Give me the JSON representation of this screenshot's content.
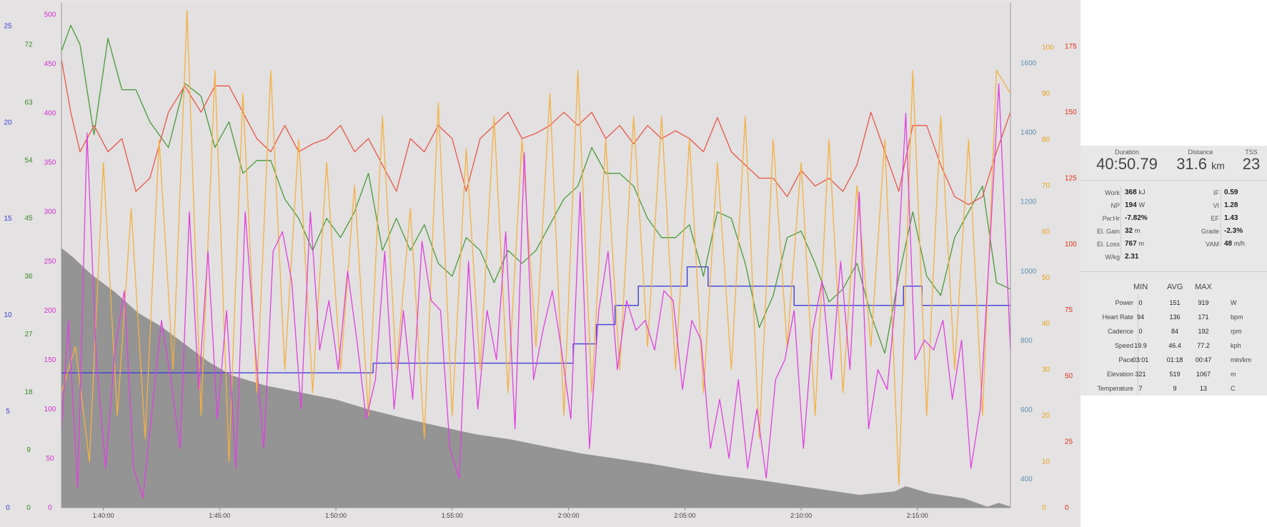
{
  "colors": {
    "background": "#e4e2e2",
    "elevation": "#8f8f8f",
    "power": "#e040e0",
    "heart_rate": "#e8564a",
    "cadence": "#f5b040",
    "speed": "#4a9a3a",
    "gear": "#3f3fd8",
    "elevation_axis": "#5f8fb0"
  },
  "chart_data": {
    "type": "line",
    "x_ticks": [
      "1:40:00",
      "1:45:00",
      "1:50:00",
      "1:55:00",
      "2:00:00",
      "2:05:00",
      "2:10:00",
      "2:15:00"
    ],
    "xlim_minutes": [
      98.2,
      139.0
    ],
    "axes": [
      {
        "id": "blue",
        "side": "left",
        "color": "#3f3fd8",
        "ticks": [
          "0",
          "5",
          "10",
          "15",
          "20",
          "25"
        ],
        "range": [
          0,
          26.2
        ]
      },
      {
        "id": "green",
        "side": "left",
        "color": "#3a8a2a",
        "ticks": [
          "0",
          "9",
          "18",
          "27",
          "36",
          "45",
          "54",
          "63",
          "72"
        ],
        "range": [
          0,
          78.5
        ]
      },
      {
        "id": "magenta",
        "side": "left",
        "color": "#d030d0",
        "ticks": [
          "0",
          "50",
          "100",
          "150",
          "200",
          "250",
          "300",
          "350",
          "400",
          "450",
          "500"
        ],
        "range": [
          0,
          512
        ]
      },
      {
        "id": "elev",
        "side": "right",
        "color": "#5f8fb0",
        "ticks": [
          "400",
          "600",
          "800",
          "1000",
          "1200",
          "1400",
          "1600"
        ],
        "range": [
          318,
          1774
        ]
      },
      {
        "id": "orange",
        "side": "right",
        "color": "#e8a020",
        "ticks": [
          "0",
          "10",
          "20",
          "30",
          "40",
          "50",
          "60",
          "70",
          "80",
          "90",
          "100"
        ],
        "range": [
          0,
          109.7
        ]
      },
      {
        "id": "red",
        "side": "right",
        "color": "#e03020",
        "ticks": [
          "0",
          "25",
          "50",
          "75",
          "100",
          "125",
          "150",
          "175"
        ],
        "range": [
          0,
          191.5
        ]
      }
    ],
    "series": [
      {
        "axis": "elev",
        "kind": "area",
        "x": [
          98.2,
          98.7,
          99.5,
          100.5,
          101.5,
          102.5,
          103.5,
          104.5,
          105.5,
          107,
          108.5,
          110,
          111.5,
          113,
          114.5,
          116,
          117.5,
          119,
          120.5,
          122,
          123.5,
          125,
          126.5,
          128,
          129.5,
          131,
          132.5,
          134,
          134.5,
          135.5,
          137,
          138,
          138.5,
          139
        ],
        "y": [
          1067,
          1040,
          990,
          940,
          880,
          840,
          790,
          740,
          700,
          670,
          650,
          630,
          600,
          575,
          552,
          530,
          515,
          495,
          475,
          460,
          445,
          428,
          412,
          400,
          385,
          370,
          355,
          365,
          380,
          360,
          345,
          321,
          332,
          321
        ]
      },
      {
        "axis": "blue",
        "kind": "step",
        "x": [
          98.2,
          111.6,
          111.6,
          120.2,
          120.2,
          121.2,
          121.2,
          122.0,
          122.0,
          123.0,
          123.0,
          125.1,
          125.1,
          126.0,
          126.0,
          129.7,
          129.7,
          134.4,
          134.4,
          135.2,
          135.2,
          139.0
        ],
        "y": [
          7,
          7,
          7.5,
          7.5,
          8.5,
          8.5,
          9.5,
          9.5,
          10.5,
          10.5,
          11.5,
          11.5,
          12.5,
          12.5,
          11.5,
          11.5,
          10.5,
          10.5,
          11.5,
          11.5,
          10.5,
          10.5
        ]
      },
      {
        "axis": "green",
        "kind": "line",
        "x": [
          98.2,
          98.6,
          99.0,
          99.6,
          100.2,
          100.8,
          101.4,
          102.0,
          102.8,
          103.5,
          104.2,
          104.8,
          105.4,
          106.0,
          106.6,
          107.2,
          107.8,
          108.4,
          109.0,
          109.6,
          110.2,
          110.8,
          111.4,
          112.0,
          112.6,
          113.2,
          113.8,
          114.4,
          115.0,
          115.6,
          116.2,
          116.8,
          117.4,
          118.0,
          118.6,
          119.2,
          119.8,
          120.4,
          121.0,
          121.6,
          122.2,
          122.8,
          123.4,
          124.0,
          124.6,
          125.2,
          125.8,
          126.4,
          127.0,
          127.6,
          128.2,
          128.8,
          129.4,
          130.0,
          130.6,
          131.2,
          131.8,
          132.4,
          133.0,
          133.6,
          134.2,
          134.8,
          135.4,
          136.0,
          136.6,
          137.2,
          137.8,
          138.4,
          139.0
        ],
        "y": [
          71,
          75,
          72,
          58,
          73,
          65,
          65,
          60,
          56,
          66,
          64,
          56,
          60,
          52,
          54,
          54,
          48,
          45,
          40,
          45,
          42,
          46,
          52,
          40,
          45,
          40,
          44,
          38,
          36,
          42,
          40,
          35,
          40,
          38,
          40,
          44,
          48,
          50,
          56,
          52,
          52,
          50,
          45,
          42,
          42,
          44,
          36,
          46,
          45,
          38,
          28,
          33,
          42,
          43,
          38,
          32,
          34,
          38,
          30,
          24,
          36,
          46,
          36,
          33,
          42,
          46,
          50,
          35,
          34
        ]
      },
      {
        "axis": "red",
        "kind": "line",
        "x": [
          98.2,
          98.6,
          99.0,
          99.6,
          100.2,
          100.8,
          101.4,
          102.0,
          102.8,
          103.5,
          104.2,
          104.8,
          105.4,
          106.0,
          106.6,
          107.2,
          107.8,
          108.4,
          109.0,
          109.6,
          110.2,
          110.8,
          111.4,
          112.0,
          112.6,
          113.2,
          113.8,
          114.4,
          115.0,
          115.6,
          116.2,
          116.8,
          117.4,
          118.0,
          118.6,
          119.2,
          119.8,
          120.4,
          121.0,
          121.6,
          122.2,
          122.8,
          123.4,
          124.0,
          124.6,
          125.2,
          125.8,
          126.4,
          127.0,
          127.6,
          128.2,
          128.8,
          129.4,
          130.0,
          130.6,
          131.2,
          131.8,
          132.4,
          133.0,
          133.6,
          134.2,
          134.8,
          135.4,
          136.0,
          136.6,
          137.2,
          137.8,
          138.4,
          139.0
        ],
        "y": [
          170,
          150,
          135,
          145,
          135,
          140,
          120,
          125,
          150,
          160,
          150,
          160,
          160,
          150,
          140,
          135,
          145,
          135,
          138,
          140,
          145,
          135,
          140,
          130,
          120,
          140,
          135,
          145,
          140,
          120,
          140,
          145,
          150,
          140,
          142,
          145,
          150,
          145,
          150,
          140,
          145,
          138,
          145,
          140,
          143,
          140,
          135,
          148,
          135,
          130,
          125,
          125,
          118,
          128,
          122,
          125,
          120,
          130,
          150,
          135,
          120,
          145,
          145,
          130,
          118,
          115,
          118,
          135,
          150
        ]
      },
      {
        "axis": "orange",
        "kind": "line",
        "x": [
          98.2,
          98.8,
          99.4,
          100.0,
          100.6,
          101.2,
          101.8,
          102.4,
          103.0,
          103.6,
          104.2,
          104.8,
          105.4,
          106.0,
          106.6,
          107.2,
          107.8,
          108.4,
          109.0,
          109.6,
          110.2,
          110.8,
          111.4,
          112.0,
          112.6,
          113.2,
          113.8,
          114.4,
          115.0,
          115.6,
          116.2,
          116.8,
          117.4,
          118.0,
          118.6,
          119.2,
          119.8,
          120.4,
          121.0,
          121.6,
          122.2,
          122.8,
          123.4,
          124.0,
          124.6,
          125.2,
          125.8,
          126.4,
          127.0,
          127.6,
          128.2,
          128.8,
          129.4,
          130.0,
          130.6,
          131.2,
          131.8,
          132.4,
          133.0,
          133.6,
          134.2,
          134.8,
          135.4,
          136.0,
          136.6,
          137.2,
          137.8,
          138.4,
          139.0
        ],
        "y": [
          25,
          35,
          10,
          75,
          20,
          65,
          15,
          80,
          30,
          108,
          20,
          95,
          10,
          90,
          25,
          95,
          30,
          80,
          25,
          75,
          30,
          70,
          20,
          85,
          30,
          65,
          15,
          88,
          20,
          78,
          30,
          85,
          25,
          80,
          35,
          90,
          20,
          95,
          25,
          80,
          30,
          85,
          35,
          85,
          30,
          80,
          25,
          75,
          30,
          85,
          15,
          80,
          35,
          75,
          20,
          80,
          25,
          70,
          35,
          80,
          5,
          95,
          20,
          85,
          30,
          80,
          20,
          95,
          90
        ]
      },
      {
        "axis": "magenta",
        "kind": "line",
        "x": [
          98.2,
          98.5,
          98.9,
          99.3,
          99.7,
          100.1,
          100.5,
          100.9,
          101.3,
          101.7,
          102.1,
          102.5,
          102.9,
          103.3,
          103.7,
          104.1,
          104.5,
          104.9,
          105.3,
          105.7,
          106.1,
          106.5,
          106.9,
          107.3,
          107.7,
          108.1,
          108.5,
          108.9,
          109.3,
          109.7,
          110.1,
          110.5,
          110.9,
          111.3,
          111.7,
          112.1,
          112.5,
          112.9,
          113.3,
          113.7,
          114.1,
          114.5,
          114.9,
          115.3,
          115.7,
          116.1,
          116.5,
          116.9,
          117.3,
          117.7,
          118.1,
          118.5,
          118.9,
          119.3,
          119.7,
          120.1,
          120.5,
          120.9,
          121.3,
          121.7,
          122.1,
          122.5,
          122.9,
          123.3,
          123.7,
          124.1,
          124.5,
          124.9,
          125.3,
          125.7,
          126.1,
          126.5,
          126.9,
          127.3,
          127.7,
          128.1,
          128.5,
          128.9,
          129.3,
          129.7,
          130.1,
          130.5,
          130.9,
          131.3,
          131.7,
          132.1,
          132.5,
          132.9,
          133.3,
          133.7,
          134.1,
          134.5,
          134.9,
          135.3,
          135.7,
          136.1,
          136.5,
          136.9,
          137.3,
          137.7,
          138.1,
          138.5,
          139.0
        ],
        "y": [
          80,
          190,
          20,
          380,
          150,
          40,
          160,
          220,
          40,
          10,
          100,
          190,
          130,
          60,
          300,
          120,
          260,
          90,
          200,
          40,
          300,
          170,
          60,
          260,
          280,
          230,
          100,
          300,
          160,
          210,
          140,
          240,
          170,
          90,
          130,
          260,
          100,
          200,
          110,
          270,
          210,
          200,
          60,
          30,
          250,
          100,
          200,
          150,
          280,
          80,
          360,
          130,
          180,
          220,
          160,
          90,
          320,
          60,
          200,
          260,
          140,
          210,
          180,
          190,
          160,
          220,
          210,
          120,
          190,
          170,
          60,
          110,
          50,
          130,
          40,
          100,
          30,
          130,
          150,
          200,
          60,
          180,
          230,
          130,
          250,
          140,
          320,
          80,
          140,
          120,
          220,
          400,
          150,
          170,
          160,
          190,
          110,
          170,
          40,
          100,
          260,
          430,
          160
        ]
      }
    ]
  },
  "summary": {
    "duration_label": "Duration",
    "duration_value": "40:50.79",
    "distance_label": "Distance",
    "distance_value": "31.6",
    "distance_unit": "km",
    "tss_label": "TSS",
    "tss_value": "23"
  },
  "metrics_left": [
    {
      "label": "Work",
      "value": "368",
      "unit": "kJ"
    },
    {
      "label": "NP",
      "value": "194",
      "unit": "W"
    },
    {
      "label": "Pw:Hr",
      "value": "-7.82%",
      "unit": ""
    },
    {
      "label": "El. Gain",
      "value": "32",
      "unit": "m"
    },
    {
      "label": "El. Loss",
      "value": "767",
      "unit": "m"
    },
    {
      "label": "W/kg",
      "value": "2.31",
      "unit": ""
    }
  ],
  "metrics_right": [
    {
      "label": "IF",
      "value": "0.59",
      "unit": ""
    },
    {
      "label": "VI",
      "value": "1.28",
      "unit": ""
    },
    {
      "label": "EF",
      "value": "1.43",
      "unit": ""
    },
    {
      "label": "Grade",
      "value": "-2.3%",
      "unit": ""
    },
    {
      "label": "VAM",
      "value": "48",
      "unit": "m/h"
    }
  ],
  "minmax": {
    "headers": {
      "min": "MIN",
      "avg": "AVG",
      "max": "MAX"
    },
    "rows": [
      {
        "label": "Power",
        "min": "0",
        "avg": "151",
        "max": "919",
        "unit": "W"
      },
      {
        "label": "Heart Rate",
        "min": "94",
        "avg": "136",
        "max": "171",
        "unit": "bpm"
      },
      {
        "label": "Cadence",
        "min": "0",
        "avg": "84",
        "max": "192",
        "unit": "rpm"
      },
      {
        "label": "Speed",
        "min": "19.9",
        "avg": "46.4",
        "max": "77.2",
        "unit": "kph"
      },
      {
        "label": "Pace",
        "min": "03:01",
        "avg": "01:18",
        "max": "00:47",
        "unit": "min/km"
      },
      {
        "label": "Elevation",
        "min": "321",
        "avg": "519",
        "max": "1067",
        "unit": "m"
      },
      {
        "label": "Temperature",
        "min": "7",
        "avg": "9",
        "max": "13",
        "unit": "C"
      }
    ]
  }
}
